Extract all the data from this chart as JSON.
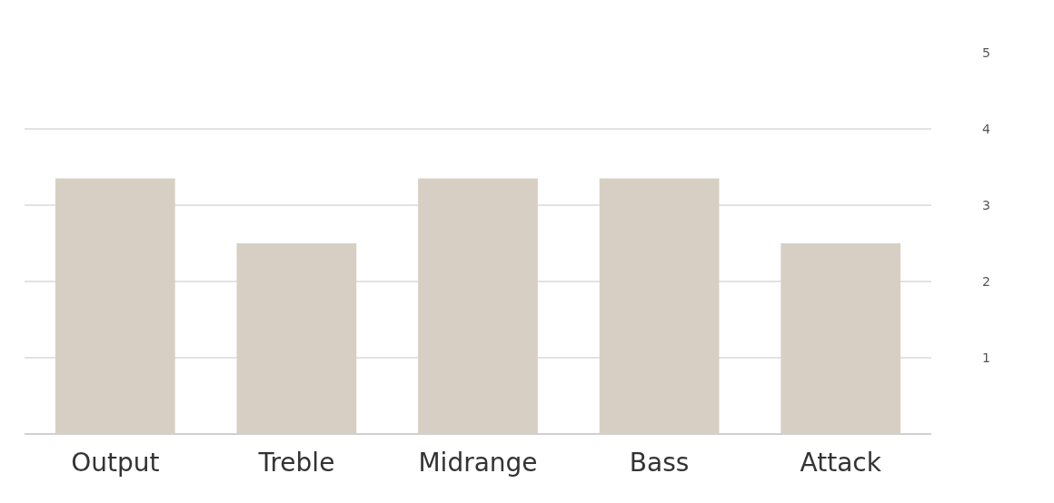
{
  "chart_data": {
    "type": "bar",
    "categories": [
      "Output",
      "Treble",
      "Midrange",
      "Bass",
      "Attack"
    ],
    "values": [
      3.35,
      2.5,
      3.35,
      3.35,
      2.5
    ],
    "color": "#d7cfc4",
    "ylim": [
      0,
      5
    ],
    "yticks": [
      1,
      2,
      3,
      4,
      5
    ],
    "grid": "y"
  }
}
